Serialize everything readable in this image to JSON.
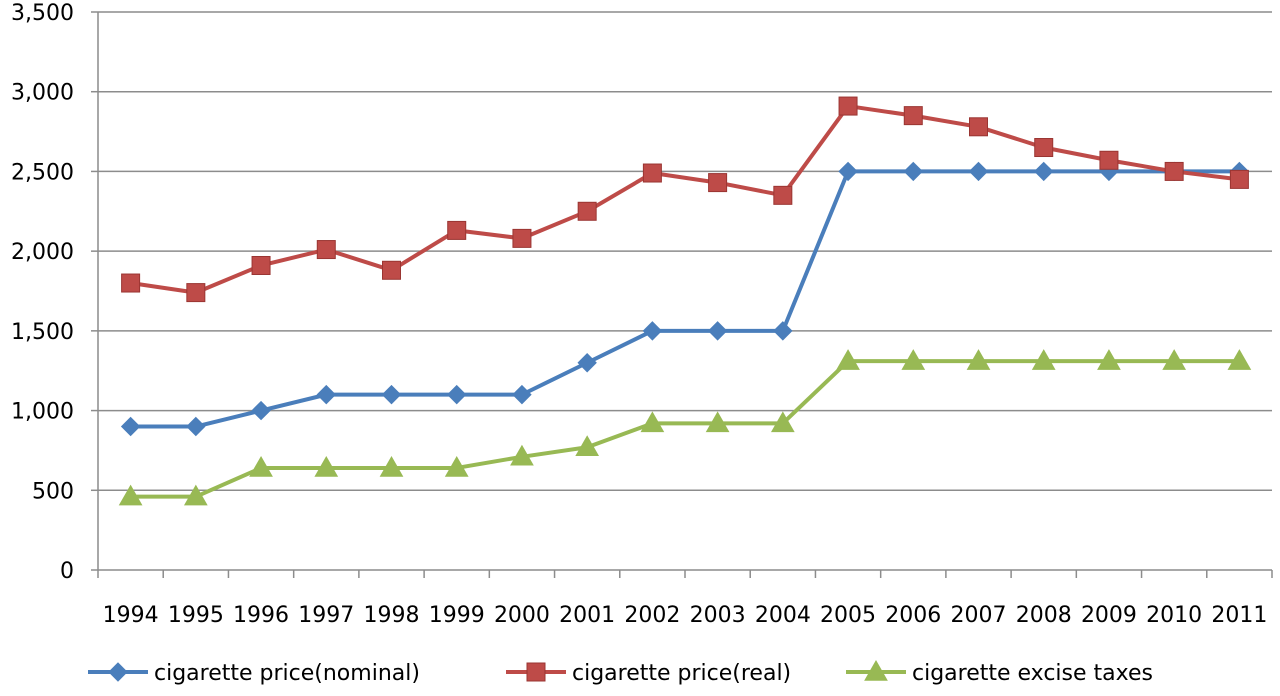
{
  "chart_data": {
    "type": "line",
    "title": "",
    "xlabel": "",
    "ylabel": "",
    "categories": [
      "1994",
      "1995",
      "1996",
      "1997",
      "1998",
      "1999",
      "2000",
      "2001",
      "2002",
      "2003",
      "2004",
      "2005",
      "2006",
      "2007",
      "2008",
      "2009",
      "2010",
      "2011"
    ],
    "ylim": [
      0,
      3500
    ],
    "yticks": [
      0,
      500,
      1000,
      1500,
      2000,
      2500,
      3000,
      3500
    ],
    "ytick_labels": [
      "0",
      "500",
      "1,000",
      "1,500",
      "2,000",
      "2,500",
      "3,000",
      "3,500"
    ],
    "grid": true,
    "legend_position": "bottom",
    "series": [
      {
        "name": "cigarette price(nominal)",
        "color": "#4A7EBB",
        "marker": "diamond",
        "values": [
          900,
          900,
          1000,
          1100,
          1100,
          1100,
          1100,
          1300,
          1500,
          1500,
          1500,
          2500,
          2500,
          2500,
          2500,
          2500,
          2500,
          2500
        ]
      },
      {
        "name": "cigarette price(real)",
        "color": "#BE4B48",
        "marker": "square",
        "values": [
          1800,
          1740,
          1910,
          2010,
          1880,
          2130,
          2080,
          2250,
          2490,
          2430,
          2350,
          2910,
          2850,
          2780,
          2650,
          2570,
          2500,
          2450
        ]
      },
      {
        "name": "cigarette excise taxes",
        "color": "#98B954",
        "marker": "triangle",
        "values": [
          460,
          460,
          640,
          640,
          640,
          640,
          710,
          770,
          920,
          920,
          920,
          1310,
          1310,
          1310,
          1310,
          1310,
          1310,
          1310
        ]
      }
    ]
  }
}
